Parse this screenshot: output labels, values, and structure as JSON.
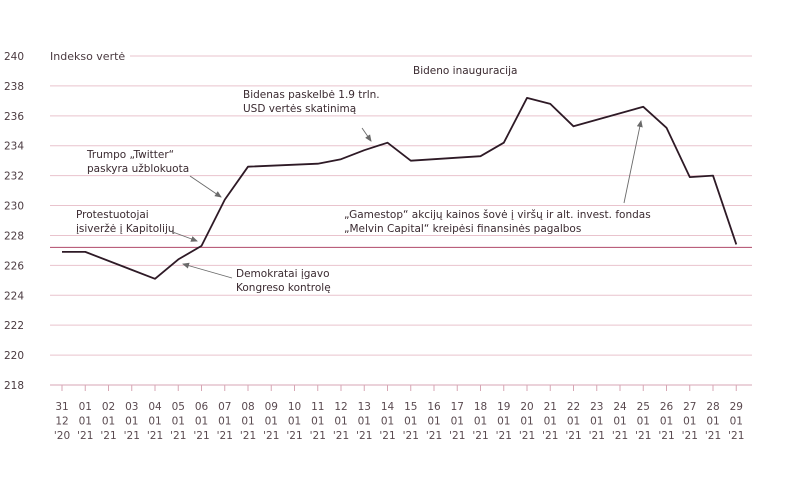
{
  "chart_data": {
    "type": "line",
    "ylabel": "Indekso vertė",
    "ylim": [
      218,
      240
    ],
    "yticks": [
      218,
      220,
      222,
      224,
      226,
      228,
      230,
      232,
      234,
      236,
      238,
      240
    ],
    "reference_line": 227.2,
    "colors": {
      "line": "#2e1a26",
      "grid": "#e9c3cd",
      "reference": "#b04a6a",
      "annotation_arrow": "#6a6a6a"
    },
    "x_labels": [
      [
        "31",
        "12",
        "'20"
      ],
      [
        "01",
        "01",
        "'21"
      ],
      [
        "02",
        "01",
        "'21"
      ],
      [
        "03",
        "01",
        "'21"
      ],
      [
        "04",
        "01",
        "'21"
      ],
      [
        "05",
        "01",
        "'21"
      ],
      [
        "06",
        "01",
        "'21"
      ],
      [
        "07",
        "01",
        "'21"
      ],
      [
        "08",
        "01",
        "'21"
      ],
      [
        "09",
        "01",
        "'21"
      ],
      [
        "10",
        "01",
        "'21"
      ],
      [
        "11",
        "01",
        "'21"
      ],
      [
        "12",
        "01",
        "'21"
      ],
      [
        "13",
        "01",
        "'21"
      ],
      [
        "14",
        "01",
        "'21"
      ],
      [
        "15",
        "01",
        "'21"
      ],
      [
        "16",
        "01",
        "'21"
      ],
      [
        "17",
        "01",
        "'21"
      ],
      [
        "18",
        "01",
        "'21"
      ],
      [
        "19",
        "01",
        "'21"
      ],
      [
        "20",
        "01",
        "'21"
      ],
      [
        "21",
        "01",
        "'21"
      ],
      [
        "22",
        "01",
        "'21"
      ],
      [
        "23",
        "01",
        "'21"
      ],
      [
        "24",
        "01",
        "'21"
      ],
      [
        "25",
        "01",
        "'21"
      ],
      [
        "26",
        "01",
        "'21"
      ],
      [
        "27",
        "01",
        "'21"
      ],
      [
        "28",
        "01",
        "'21"
      ],
      [
        "29",
        "01",
        "'21"
      ]
    ],
    "series": [
      {
        "points": [
          [
            "31.12",
            "226.9"
          ],
          [
            "01.01",
            "226.9"
          ],
          [
            "04.01",
            "225.1"
          ],
          [
            "05.01",
            "226.4"
          ],
          [
            "06.01",
            "227.3"
          ],
          [
            "07.01",
            "230.4"
          ],
          [
            "08.01",
            "232.6"
          ],
          [
            "11.01",
            "232.8"
          ],
          [
            "12.01",
            "233.1"
          ],
          [
            "13.01",
            "233.7"
          ],
          [
            "14.01",
            "234.2"
          ],
          [
            "15.01",
            "233.0"
          ],
          [
            "18.01",
            "233.3"
          ],
          [
            "19.01",
            "234.2"
          ],
          [
            "20.01",
            "237.2"
          ],
          [
            "21.01",
            "236.8"
          ],
          [
            "22.01",
            "235.3"
          ],
          [
            "25.01",
            "236.6"
          ],
          [
            "26.01",
            "235.2"
          ],
          [
            "27.01",
            "231.9"
          ],
          [
            "28.01",
            "232.0"
          ],
          [
            "29.01",
            "227.4"
          ]
        ]
      }
    ],
    "annotations": [
      {
        "lines": [
          "Protestuotojai",
          "įsiveržė į Kapitolijų"
        ]
      },
      {
        "lines": [
          "Demokratai įgavo",
          "Kongreso kontrolę"
        ]
      },
      {
        "lines": [
          "Trumpo „Twitter“",
          "paskyra užblokuota"
        ]
      },
      {
        "lines": [
          "Bidenas paskelbė  1.9 trln.",
          "USD vertės skatinimą"
        ]
      },
      {
        "lines": [
          "Bideno inauguracija"
        ]
      },
      {
        "lines": [
          "„Gamestop“ akcijų kainos šovė į viršų ir alt. invest. fondas",
          "„Melvin Capital“ kreipėsi finansinės pagalbos"
        ]
      }
    ]
  }
}
